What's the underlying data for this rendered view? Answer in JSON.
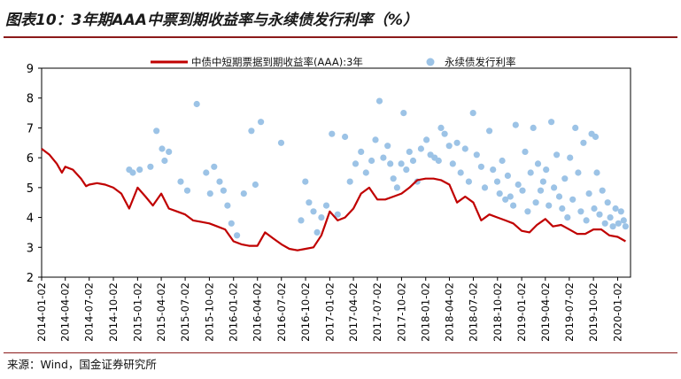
{
  "header": {
    "title": "图表10：3年期AAA中票到期收益率与永续债发行利率（%）"
  },
  "footer": {
    "source": "来源：Wind，国金证券研究所"
  },
  "colors": {
    "line": "#c00000",
    "dots": "#9cc3e6",
    "accent": "#8c1a1a"
  },
  "chart_data": {
    "type": "line",
    "title": "图表10：3年期AAA中票到期收益率与永续债发行利率（%）",
    "ylim": [
      2,
      9
    ],
    "yticks": [
      "2",
      "3",
      "4",
      "5",
      "6",
      "7",
      "8",
      "9"
    ],
    "xticks": [
      "2014-01-02",
      "2014-04-02",
      "2014-07-02",
      "2014-10-02",
      "2015-01-02",
      "2015-04-02",
      "2015-07-02",
      "2015-10-02",
      "2016-01-02",
      "2016-04-02",
      "2016-07-02",
      "2016-10-02",
      "2017-01-02",
      "2017-04-02",
      "2017-07-02",
      "2017-10-02",
      "2018-01-02",
      "2018-04-02",
      "2018-07-02",
      "2018-10-02",
      "2019-01-02",
      "2019-04-02",
      "2019-07-02",
      "2019-10-02",
      "2020-01-02"
    ],
    "legend": {
      "placement": "top",
      "line_label": "中债中短期票据到期收益率(AAA):3年",
      "dots_label": "永续债发行利率"
    },
    "series": [
      {
        "name": "中债中短期票据到期收益率(AAA):3年",
        "kind": "line",
        "points": [
          [
            "2014-01-02",
            6.3
          ],
          [
            "2014-02-01",
            6.1
          ],
          [
            "2014-03-01",
            5.8
          ],
          [
            "2014-03-20",
            5.5
          ],
          [
            "2014-04-02",
            5.7
          ],
          [
            "2014-05-01",
            5.6
          ],
          [
            "2014-06-01",
            5.3
          ],
          [
            "2014-06-20",
            5.05
          ],
          [
            "2014-07-02",
            5.1
          ],
          [
            "2014-08-01",
            5.15
          ],
          [
            "2014-09-01",
            5.1
          ],
          [
            "2014-10-02",
            5.0
          ],
          [
            "2014-11-01",
            4.8
          ],
          [
            "2014-12-01",
            4.3
          ],
          [
            "2015-01-02",
            5.0
          ],
          [
            "2015-02-01",
            4.7
          ],
          [
            "2015-03-01",
            4.4
          ],
          [
            "2015-04-02",
            4.8
          ],
          [
            "2015-05-01",
            4.3
          ],
          [
            "2015-06-01",
            4.2
          ],
          [
            "2015-07-02",
            4.1
          ],
          [
            "2015-08-01",
            3.9
          ],
          [
            "2015-09-01",
            3.85
          ],
          [
            "2015-10-02",
            3.8
          ],
          [
            "2015-11-01",
            3.7
          ],
          [
            "2015-12-01",
            3.6
          ],
          [
            "2016-01-02",
            3.2
          ],
          [
            "2016-02-01",
            3.1
          ],
          [
            "2016-03-01",
            3.05
          ],
          [
            "2016-04-02",
            3.05
          ],
          [
            "2016-05-01",
            3.5
          ],
          [
            "2016-06-01",
            3.3
          ],
          [
            "2016-07-02",
            3.1
          ],
          [
            "2016-08-01",
            2.95
          ],
          [
            "2016-09-01",
            2.9
          ],
          [
            "2016-10-02",
            2.95
          ],
          [
            "2016-11-01",
            3.0
          ],
          [
            "2016-12-01",
            3.4
          ],
          [
            "2017-01-02",
            4.2
          ],
          [
            "2017-02-01",
            3.9
          ],
          [
            "2017-03-01",
            4.0
          ],
          [
            "2017-04-02",
            4.3
          ],
          [
            "2017-05-01",
            4.8
          ],
          [
            "2017-06-01",
            5.0
          ],
          [
            "2017-07-02",
            4.6
          ],
          [
            "2017-08-01",
            4.6
          ],
          [
            "2017-09-01",
            4.7
          ],
          [
            "2017-10-02",
            4.8
          ],
          [
            "2017-11-01",
            5.0
          ],
          [
            "2017-12-01",
            5.25
          ],
          [
            "2018-01-02",
            5.3
          ],
          [
            "2018-02-01",
            5.3
          ],
          [
            "2018-03-01",
            5.25
          ],
          [
            "2018-04-02",
            5.1
          ],
          [
            "2018-05-01",
            4.5
          ],
          [
            "2018-06-01",
            4.7
          ],
          [
            "2018-07-02",
            4.5
          ],
          [
            "2018-08-01",
            3.9
          ],
          [
            "2018-09-01",
            4.1
          ],
          [
            "2018-10-02",
            4.0
          ],
          [
            "2018-11-01",
            3.9
          ],
          [
            "2018-12-01",
            3.8
          ],
          [
            "2019-01-02",
            3.55
          ],
          [
            "2019-02-01",
            3.5
          ],
          [
            "2019-03-01",
            3.75
          ],
          [
            "2019-04-02",
            3.95
          ],
          [
            "2019-05-01",
            3.7
          ],
          [
            "2019-06-01",
            3.75
          ],
          [
            "2019-07-02",
            3.6
          ],
          [
            "2019-08-01",
            3.45
          ],
          [
            "2019-09-01",
            3.45
          ],
          [
            "2019-10-02",
            3.6
          ],
          [
            "2019-11-01",
            3.6
          ],
          [
            "2019-12-01",
            3.4
          ],
          [
            "2020-01-02",
            3.35
          ],
          [
            "2020-02-01",
            3.2
          ]
        ]
      },
      {
        "name": "永续债发行利率",
        "kind": "scatter",
        "points": [
          [
            "2014-12-01",
            5.6
          ],
          [
            "2014-12-15",
            5.5
          ],
          [
            "2015-01-10",
            5.6
          ],
          [
            "2015-02-20",
            5.7
          ],
          [
            "2015-03-15",
            6.9
          ],
          [
            "2015-04-05",
            6.3
          ],
          [
            "2015-04-15",
            5.9
          ],
          [
            "2015-05-01",
            6.2
          ],
          [
            "2015-06-15",
            5.2
          ],
          [
            "2015-07-10",
            4.9
          ],
          [
            "2015-08-15",
            7.8
          ],
          [
            "2015-09-20",
            5.5
          ],
          [
            "2015-10-05",
            4.8
          ],
          [
            "2015-10-20",
            5.7
          ],
          [
            "2015-11-10",
            5.2
          ],
          [
            "2015-11-25",
            4.9
          ],
          [
            "2015-12-10",
            4.4
          ],
          [
            "2015-12-25",
            3.8
          ],
          [
            "2016-01-15",
            3.4
          ],
          [
            "2016-02-10",
            4.8
          ],
          [
            "2016-03-10",
            6.9
          ],
          [
            "2016-03-25",
            5.1
          ],
          [
            "2016-04-15",
            7.2
          ],
          [
            "2016-07-01",
            6.5
          ],
          [
            "2016-09-15",
            3.9
          ],
          [
            "2016-10-01",
            5.2
          ],
          [
            "2016-10-15",
            4.5
          ],
          [
            "2016-11-01",
            4.2
          ],
          [
            "2016-11-15",
            3.5
          ],
          [
            "2016-12-01",
            4.0
          ],
          [
            "2016-12-20",
            4.4
          ],
          [
            "2017-01-10",
            6.8
          ],
          [
            "2017-02-01",
            4.1
          ],
          [
            "2017-03-01",
            6.7
          ],
          [
            "2017-03-20",
            5.2
          ],
          [
            "2017-04-10",
            5.8
          ],
          [
            "2017-05-01",
            6.2
          ],
          [
            "2017-05-20",
            5.5
          ],
          [
            "2017-06-10",
            5.9
          ],
          [
            "2017-06-25",
            6.6
          ],
          [
            "2017-07-10",
            7.9
          ],
          [
            "2017-07-25",
            6.0
          ],
          [
            "2017-08-10",
            6.4
          ],
          [
            "2017-08-20",
            5.8
          ],
          [
            "2017-09-01",
            5.3
          ],
          [
            "2017-09-15",
            5.0
          ],
          [
            "2017-10-01",
            5.8
          ],
          [
            "2017-10-10",
            7.5
          ],
          [
            "2017-10-20",
            5.6
          ],
          [
            "2017-11-01",
            6.2
          ],
          [
            "2017-11-15",
            5.9
          ],
          [
            "2017-12-01",
            5.2
          ],
          [
            "2017-12-15",
            6.3
          ],
          [
            "2018-01-05",
            6.6
          ],
          [
            "2018-01-20",
            6.1
          ],
          [
            "2018-02-05",
            6.0
          ],
          [
            "2018-02-20",
            5.9
          ],
          [
            "2018-03-01",
            7.0
          ],
          [
            "2018-03-15",
            6.8
          ],
          [
            "2018-04-01",
            6.4
          ],
          [
            "2018-04-15",
            5.8
          ],
          [
            "2018-05-01",
            6.5
          ],
          [
            "2018-05-15",
            5.5
          ],
          [
            "2018-06-01",
            6.3
          ],
          [
            "2018-06-15",
            5.2
          ],
          [
            "2018-07-01",
            7.5
          ],
          [
            "2018-07-15",
            6.1
          ],
          [
            "2018-08-01",
            5.7
          ],
          [
            "2018-08-15",
            5.0
          ],
          [
            "2018-09-01",
            6.9
          ],
          [
            "2018-09-15",
            5.6
          ],
          [
            "2018-10-01",
            5.2
          ],
          [
            "2018-10-10",
            4.8
          ],
          [
            "2018-10-20",
            5.9
          ],
          [
            "2018-11-01",
            4.6
          ],
          [
            "2018-11-10",
            5.4
          ],
          [
            "2018-11-20",
            4.7
          ],
          [
            "2018-12-01",
            4.4
          ],
          [
            "2018-12-10",
            7.1
          ],
          [
            "2018-12-20",
            5.1
          ],
          [
            "2019-01-05",
            4.9
          ],
          [
            "2019-01-15",
            6.2
          ],
          [
            "2019-01-25",
            4.2
          ],
          [
            "2019-02-05",
            5.5
          ],
          [
            "2019-02-15",
            7.0
          ],
          [
            "2019-02-25",
            4.5
          ],
          [
            "2019-03-05",
            5.8
          ],
          [
            "2019-03-15",
            4.9
          ],
          [
            "2019-03-25",
            5.2
          ],
          [
            "2019-04-05",
            5.6
          ],
          [
            "2019-04-15",
            4.4
          ],
          [
            "2019-04-25",
            7.2
          ],
          [
            "2019-05-05",
            5.0
          ],
          [
            "2019-05-15",
            6.1
          ],
          [
            "2019-05-25",
            4.7
          ],
          [
            "2019-06-05",
            4.3
          ],
          [
            "2019-06-15",
            5.3
          ],
          [
            "2019-06-25",
            4.0
          ],
          [
            "2019-07-05",
            6.0
          ],
          [
            "2019-07-15",
            4.6
          ],
          [
            "2019-07-25",
            7.0
          ],
          [
            "2019-08-05",
            5.5
          ],
          [
            "2019-08-15",
            4.2
          ],
          [
            "2019-08-25",
            6.5
          ],
          [
            "2019-09-05",
            3.9
          ],
          [
            "2019-09-15",
            4.8
          ],
          [
            "2019-09-25",
            6.8
          ],
          [
            "2019-10-05",
            4.3
          ],
          [
            "2019-10-10",
            6.7
          ],
          [
            "2019-10-15",
            5.5
          ],
          [
            "2019-10-25",
            4.1
          ],
          [
            "2019-11-05",
            4.9
          ],
          [
            "2019-11-15",
            3.8
          ],
          [
            "2019-11-25",
            4.5
          ],
          [
            "2019-12-05",
            4.0
          ],
          [
            "2019-12-15",
            3.7
          ],
          [
            "2019-12-25",
            4.3
          ],
          [
            "2020-01-05",
            3.8
          ],
          [
            "2020-01-15",
            4.2
          ],
          [
            "2020-01-25",
            3.9
          ],
          [
            "2020-02-01",
            3.7
          ]
        ]
      }
    ]
  }
}
